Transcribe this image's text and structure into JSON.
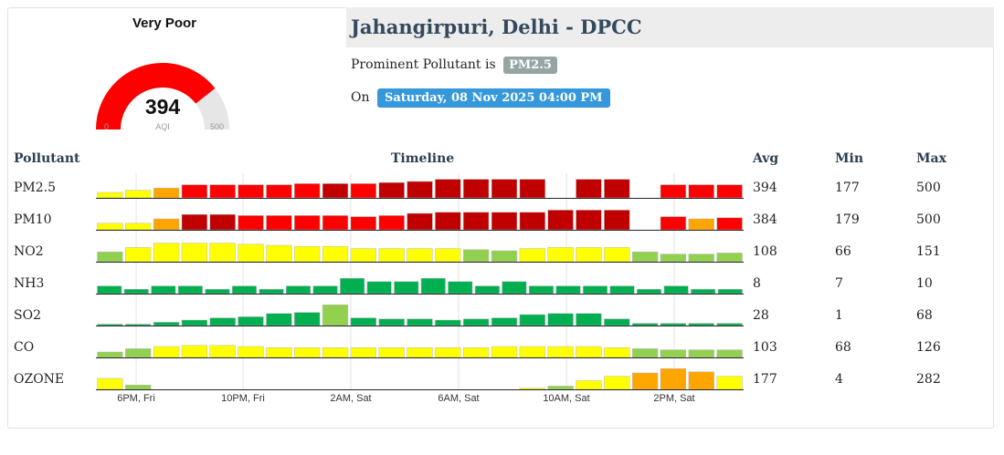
{
  "gauge": {
    "category": "Very Poor",
    "value": 394,
    "min": 0,
    "max": 500,
    "unit": "AQI",
    "fill_color": "#ff0000",
    "track_color": "#e6e6e6"
  },
  "station": {
    "title": "Jahangirpuri, Delhi - DPCC",
    "prominent_label": "Prominent Pollutant is",
    "prominent_value": "PM2.5",
    "on_label": "On",
    "timestamp": "Saturday, 08 Nov 2025 04:00 PM"
  },
  "table": {
    "headers": {
      "pollutant": "Pollutant",
      "timeline": "Timeline",
      "avg": "Avg",
      "min": "Min",
      "max": "Max"
    },
    "rows": [
      {
        "name": "PM2.5",
        "avg": "394",
        "min": "177",
        "max": "500",
        "bars": [
          0.25,
          0.35,
          0.45,
          0.6,
          0.6,
          0.6,
          0.6,
          0.65,
          0.65,
          0.65,
          0.7,
          0.75,
          0.85,
          0.85,
          0.85,
          0.85,
          0,
          0.85,
          0.85,
          0,
          0.6,
          0.6,
          0.6
        ],
        "colors": [
          "yel",
          "yel",
          "org",
          "red",
          "red",
          "red",
          "red",
          "red",
          "dred",
          "red",
          "dred",
          "dred",
          "dred",
          "dred",
          "dred",
          "dred",
          "none",
          "dred",
          "dred",
          "none",
          "red",
          "red",
          "red"
        ]
      },
      {
        "name": "PM10",
        "avg": "384",
        "min": "179",
        "max": "500",
        "bars": [
          0.3,
          0.3,
          0.5,
          0.7,
          0.7,
          0.65,
          0.65,
          0.65,
          0.65,
          0.6,
          0.65,
          0.75,
          0.8,
          0.8,
          0.8,
          0.8,
          0.9,
          0.9,
          0.9,
          0,
          0.6,
          0.5,
          0.55
        ],
        "colors": [
          "yel",
          "yel",
          "org",
          "dred",
          "dred",
          "red",
          "red",
          "red",
          "red",
          "red",
          "red",
          "dred",
          "dred",
          "dred",
          "dred",
          "dred",
          "dred",
          "dred",
          "dred",
          "none",
          "red",
          "org",
          "red"
        ]
      },
      {
        "name": "NO2",
        "avg": "108",
        "min": "66",
        "max": "151",
        "bars": [
          0.45,
          0.65,
          0.85,
          0.85,
          0.85,
          0.8,
          0.75,
          0.7,
          0.7,
          0.6,
          0.6,
          0.6,
          0.6,
          0.55,
          0.5,
          0.6,
          0.65,
          0.65,
          0.65,
          0.45,
          0.35,
          0.35,
          0.4
        ],
        "colors": [
          "lgrn",
          "yel",
          "yel",
          "yel",
          "yel",
          "yel",
          "yel",
          "yel",
          "yel",
          "yel",
          "yel",
          "yel",
          "yel",
          "lgrn",
          "lgrn",
          "yel",
          "yel",
          "yel",
          "yel",
          "lgrn",
          "lgrn",
          "lgrn",
          "lgrn"
        ]
      },
      {
        "name": "NH3",
        "avg": "8",
        "min": "7",
        "max": "10",
        "bars": [
          0.35,
          0.2,
          0.35,
          0.35,
          0.2,
          0.35,
          0.2,
          0.35,
          0.35,
          0.7,
          0.55,
          0.55,
          0.7,
          0.55,
          0.35,
          0.55,
          0.35,
          0.35,
          0.35,
          0.35,
          0.2,
          0.35,
          0.2,
          0.2
        ],
        "colors": [
          "grn",
          "grn",
          "grn",
          "grn",
          "grn",
          "grn",
          "grn",
          "grn",
          "grn",
          "grn",
          "grn",
          "grn",
          "grn",
          "grn",
          "grn",
          "grn",
          "grn",
          "grn",
          "grn",
          "grn",
          "grn",
          "grn",
          "grn",
          "grn"
        ]
      },
      {
        "name": "SO2",
        "avg": "28",
        "min": "1",
        "max": "68",
        "bars": [
          0.03,
          0.03,
          0.15,
          0.25,
          0.35,
          0.4,
          0.55,
          0.6,
          0.95,
          0.35,
          0.3,
          0.3,
          0.25,
          0.3,
          0.35,
          0.5,
          0.55,
          0.55,
          0.3,
          0.1,
          0.1,
          0.1,
          0.1
        ],
        "colors": [
          "grn",
          "grn",
          "grn",
          "grn",
          "grn",
          "grn",
          "grn",
          "grn",
          "lgrn",
          "grn",
          "grn",
          "grn",
          "grn",
          "grn",
          "grn",
          "grn",
          "grn",
          "grn",
          "grn",
          "grn",
          "grn",
          "grn",
          "grn"
        ]
      },
      {
        "name": "CO",
        "avg": "103",
        "min": "68",
        "max": "126",
        "bars": [
          0.25,
          0.4,
          0.5,
          0.55,
          0.55,
          0.5,
          0.45,
          0.45,
          0.45,
          0.45,
          0.45,
          0.45,
          0.45,
          0.45,
          0.5,
          0.5,
          0.5,
          0.5,
          0.45,
          0.4,
          0.35,
          0.35,
          0.35
        ],
        "colors": [
          "lgrn",
          "lgrn",
          "yel",
          "yel",
          "yel",
          "yel",
          "yel",
          "yel",
          "yel",
          "yel",
          "yel",
          "yel",
          "yel",
          "yel",
          "yel",
          "yel",
          "yel",
          "yel",
          "yel",
          "lgrn",
          "lgrn",
          "lgrn",
          "lgrn"
        ]
      },
      {
        "name": "OZONE",
        "avg": "177",
        "min": "4",
        "max": "282",
        "bars": [
          0.5,
          0.2,
          0,
          0,
          0,
          0,
          0,
          0,
          0,
          0,
          0,
          0,
          0,
          0,
          0,
          0.03,
          0.15,
          0.4,
          0.6,
          0.75,
          0.95,
          0.8,
          0.6
        ],
        "colors": [
          "yel",
          "lgrn",
          "none",
          "none",
          "none",
          "none",
          "none",
          "none",
          "none",
          "none",
          "none",
          "none",
          "none",
          "none",
          "none",
          "yel",
          "lgrn",
          "yel",
          "yel",
          "org",
          "org",
          "org",
          "yel"
        ]
      }
    ],
    "axis_labels": [
      "6PM, Fri",
      "10PM, Fri",
      "2AM, Sat",
      "6AM, Sat",
      "10AM, Sat",
      "2PM, Sat"
    ],
    "palette": {
      "yel": "#ffff00",
      "org": "#ffa500",
      "red": "#ff0000",
      "dred": "#c00000",
      "lgrn": "#92d050",
      "grn": "#00b050"
    }
  }
}
